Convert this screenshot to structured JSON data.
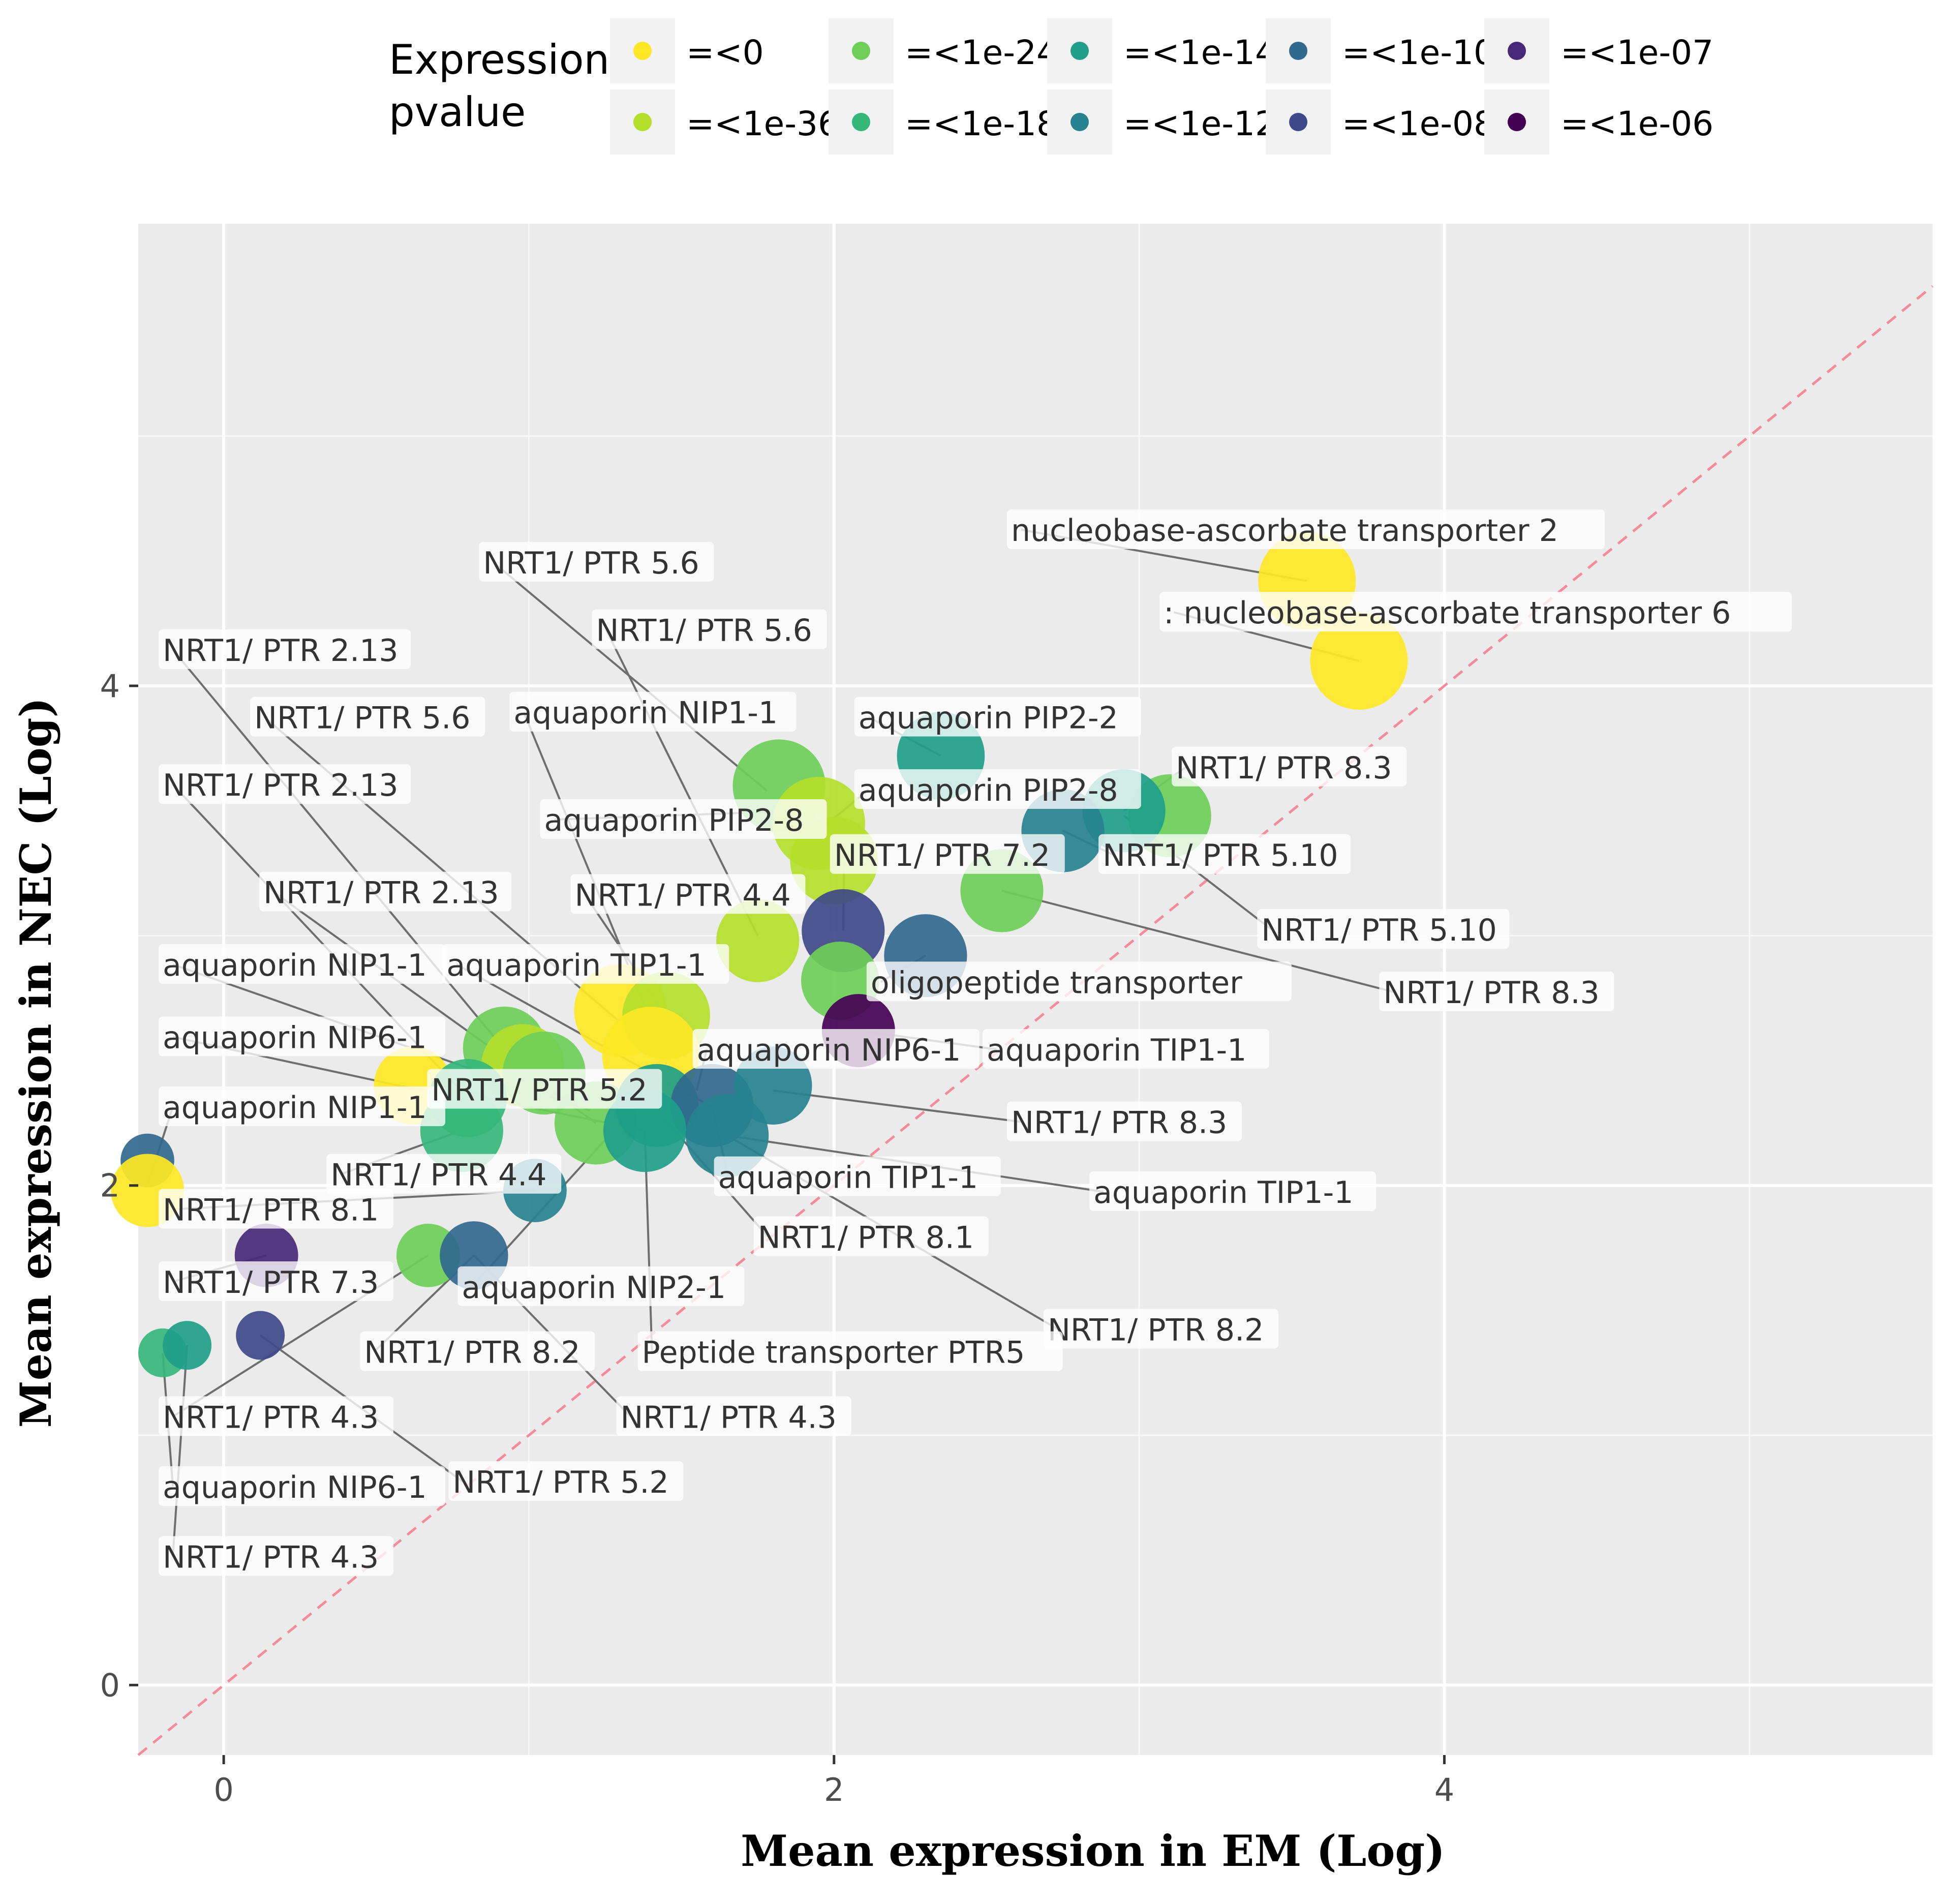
{
  "chart_data": {
    "type": "scatter",
    "xlabel": "Mean expression in EM (Log)",
    "ylabel": "Mean expression in  NEC (Log)",
    "xlim": [
      -0.28,
      5.6
    ],
    "ylim": [
      -0.28,
      5.85
    ],
    "x_ticks": [
      0,
      2,
      4
    ],
    "y_ticks": [
      0,
      2,
      4
    ],
    "grid": true,
    "diagonal_reference": "y = x",
    "legend": {
      "title_line1": "Expression",
      "title_line2": "pvalue",
      "position": "top",
      "entries": [
        {
          "label": "=<0",
          "color": "#FDE725"
        },
        {
          "label": "=<1e-36",
          "color": "#B5DE2B"
        },
        {
          "label": "=<1e-24",
          "color": "#6ECE58"
        },
        {
          "label": "=<1e-18",
          "color": "#35B779"
        },
        {
          "label": "=<1e-14",
          "color": "#1F9E89"
        },
        {
          "label": "=<1e-12",
          "color": "#26828E"
        },
        {
          "label": "=<1e-10",
          "color": "#31688E"
        },
        {
          "label": "=<1e-08",
          "color": "#3E4989"
        },
        {
          "label": "=<1e-07",
          "color": "#482878"
        },
        {
          "label": "=<1e-06",
          "color": "#440154"
        }
      ]
    },
    "points": [
      {
        "x": 3.55,
        "y": 4.42,
        "p": 0,
        "s": 1.0
      },
      {
        "x": 3.72,
        "y": 4.1,
        "p": 0,
        "s": 1.0
      },
      {
        "x": 2.35,
        "y": 3.72,
        "p": 4,
        "s": 0.9
      },
      {
        "x": 1.82,
        "y": 3.6,
        "p": 2,
        "s": 0.95
      },
      {
        "x": 1.95,
        "y": 3.45,
        "p": 1,
        "s": 0.95
      },
      {
        "x": 2.0,
        "y": 3.3,
        "p": 1,
        "s": 0.9
      },
      {
        "x": 3.1,
        "y": 3.48,
        "p": 2,
        "s": 0.85
      },
      {
        "x": 2.95,
        "y": 3.5,
        "p": 4,
        "s": 0.85
      },
      {
        "x": 2.75,
        "y": 3.42,
        "p": 5,
        "s": 0.85
      },
      {
        "x": 2.55,
        "y": 3.18,
        "p": 2,
        "s": 0.85
      },
      {
        "x": 2.03,
        "y": 3.02,
        "p": 7,
        "s": 0.85
      },
      {
        "x": 2.3,
        "y": 2.92,
        "p": 6,
        "s": 0.85
      },
      {
        "x": 1.75,
        "y": 2.98,
        "p": 1,
        "s": 0.85
      },
      {
        "x": 2.02,
        "y": 2.82,
        "p": 2,
        "s": 0.8
      },
      {
        "x": 2.08,
        "y": 2.62,
        "p": 9,
        "s": 0.75
      },
      {
        "x": 1.3,
        "y": 2.7,
        "p": 0,
        "s": 0.95
      },
      {
        "x": 1.45,
        "y": 2.68,
        "p": 1,
        "s": 0.9
      },
      {
        "x": 1.4,
        "y": 2.52,
        "p": 0,
        "s": 1.0
      },
      {
        "x": 0.92,
        "y": 2.55,
        "p": 2,
        "s": 0.85
      },
      {
        "x": 0.98,
        "y": 2.48,
        "p": 1,
        "s": 0.85
      },
      {
        "x": 1.05,
        "y": 2.45,
        "p": 2,
        "s": 0.85
      },
      {
        "x": 0.62,
        "y": 2.4,
        "p": 0,
        "s": 0.8
      },
      {
        "x": 0.8,
        "y": 2.35,
        "p": 3,
        "s": 0.8
      },
      {
        "x": 0.78,
        "y": 2.22,
        "p": 3,
        "s": 0.85
      },
      {
        "x": 1.22,
        "y": 2.25,
        "p": 2,
        "s": 0.85
      },
      {
        "x": 1.42,
        "y": 2.32,
        "p": 4,
        "s": 0.85
      },
      {
        "x": 1.6,
        "y": 2.32,
        "p": 6,
        "s": 0.85
      },
      {
        "x": 1.38,
        "y": 2.22,
        "p": 4,
        "s": 0.85
      },
      {
        "x": 1.65,
        "y": 2.2,
        "p": 5,
        "s": 0.85
      },
      {
        "x": 1.8,
        "y": 2.4,
        "p": 5,
        "s": 0.8
      },
      {
        "x": 1.02,
        "y": 1.98,
        "p": 5,
        "s": 0.65
      },
      {
        "x": -0.25,
        "y": 2.1,
        "p": 6,
        "s": 0.55
      },
      {
        "x": -0.25,
        "y": 1.98,
        "p": 0,
        "s": 0.75
      },
      {
        "x": 0.14,
        "y": 1.72,
        "p": 8,
        "s": 0.65
      },
      {
        "x": 0.67,
        "y": 1.72,
        "p": 2,
        "s": 0.65
      },
      {
        "x": 0.82,
        "y": 1.72,
        "p": 6,
        "s": 0.7
      },
      {
        "x": 0.12,
        "y": 1.4,
        "p": 7,
        "s": 0.5
      },
      {
        "x": -0.2,
        "y": 1.33,
        "p": 3,
        "s": 0.5
      },
      {
        "x": -0.12,
        "y": 1.36,
        "p": 4,
        "s": 0.5
      }
    ],
    "labels": [
      {
        "text": "nucleobase-ascorbate transporter 2",
        "lx": 2.58,
        "ly": 4.58,
        "px": 3.55,
        "py": 4.42
      },
      {
        "text": ": nucleobase-ascorbate transporter 6",
        "lx": 3.08,
        "ly": 4.25,
        "px": 3.72,
        "py": 4.1
      },
      {
        "text": "NRT1/ PTR 5.6",
        "lx": 0.85,
        "ly": 4.45,
        "px": 1.78,
        "py": 3.58
      },
      {
        "text": "NRT1/ PTR 5.6",
        "lx": 1.22,
        "ly": 4.18,
        "px": 1.75,
        "py": 3.0
      },
      {
        "text": "NRT1/ PTR 2.13",
        "lx": -0.2,
        "ly": 4.1,
        "px": 0.95,
        "py": 2.5
      },
      {
        "text": "NRT1/ PTR 5.6",
        "lx": 0.1,
        "ly": 3.83,
        "px": 1.35,
        "py": 2.6
      },
      {
        "text": "aquaporin NIP1-1",
        "lx": 0.95,
        "ly": 3.85,
        "px": 1.42,
        "py": 2.6
      },
      {
        "text": "aquaporin PIP2-2",
        "lx": 2.08,
        "ly": 3.83,
        "px": 2.35,
        "py": 3.72
      },
      {
        "text": "NRT1/ PTR 2.13",
        "lx": -0.2,
        "ly": 3.56,
        "px": 0.8,
        "py": 2.35
      },
      {
        "text": "aquaporin PIP2-8",
        "lx": 2.08,
        "ly": 3.54,
        "px": 1.98,
        "py": 3.45
      },
      {
        "text": "aquaporin PIP2-8",
        "lx": 1.05,
        "ly": 3.42,
        "px": 1.9,
        "py": 3.5
      },
      {
        "text": "NRT1/ PTR 8.3",
        "lx": 3.12,
        "ly": 3.63,
        "px": 2.95,
        "py": 3.5
      },
      {
        "text": "NRT1/ PTR 7.2",
        "lx": 2.0,
        "ly": 3.28,
        "px": 2.03,
        "py": 3.02
      },
      {
        "text": "NRT1/ PTR 5.10",
        "lx": 2.88,
        "ly": 3.28,
        "px": 2.75,
        "py": 3.42
      },
      {
        "text": "NRT1/ PTR 2.13",
        "lx": 0.13,
        "ly": 3.13,
        "px": 1.22,
        "py": 2.25
      },
      {
        "text": "NRT1/ PTR 4.4",
        "lx": 1.15,
        "ly": 3.12,
        "px": 1.45,
        "py": 2.68
      },
      {
        "text": "NRT1/ PTR 5.10",
        "lx": 3.4,
        "ly": 2.98,
        "px": 2.95,
        "py": 3.48
      },
      {
        "text": "aquaporin NIP1-1",
        "lx": -0.2,
        "ly": 2.84,
        "px": 1.2,
        "py": 2.3
      },
      {
        "text": "aquaporin TIP1-1",
        "lx": 0.73,
        "ly": 2.84,
        "px": 1.62,
        "py": 2.3
      },
      {
        "text": "oligopeptide transporter",
        "lx": 2.12,
        "ly": 2.77,
        "px": 2.3,
        "py": 2.92
      },
      {
        "text": "NRT1/ PTR 8.3",
        "lx": 3.8,
        "ly": 2.73,
        "px": 2.55,
        "py": 3.18
      },
      {
        "text": "aquaporin NIP6-1",
        "lx": -0.2,
        "ly": 2.55,
        "px": 0.65,
        "py": 2.38
      },
      {
        "text": "aquaporin TIP1-1",
        "lx": 2.5,
        "ly": 2.5,
        "px": 2.08,
        "py": 2.62
      },
      {
        "text": "aquaporin NIP6-1",
        "lx": 1.55,
        "ly": 2.5,
        "px": 1.55,
        "py": 2.38
      },
      {
        "text": "aquaporin NIP1-1",
        "lx": -0.2,
        "ly": 2.27,
        "px": -0.25,
        "py": 2.0
      },
      {
        "text": "NRT1/ PTR 5.2",
        "lx": 0.68,
        "ly": 2.34,
        "px": 1.38,
        "py": 2.22
      },
      {
        "text": "NRT1/ PTR 8.3",
        "lx": 2.58,
        "ly": 2.21,
        "px": 1.8,
        "py": 2.38
      },
      {
        "text": "NRT1/ PTR 4.4",
        "lx": 0.35,
        "ly": 2.0,
        "px": 0.78,
        "py": 2.22
      },
      {
        "text": "aquaporin TIP1-1",
        "lx": 1.62,
        "ly": 1.99,
        "px": 1.6,
        "py": 2.32
      },
      {
        "text": "aquaporin TIP1-1",
        "lx": 2.85,
        "ly": 1.93,
        "px": 1.65,
        "py": 2.2
      },
      {
        "text": "NRT1/ PTR 8.1",
        "lx": -0.2,
        "ly": 1.86,
        "px": 1.02,
        "py": 1.98
      },
      {
        "text": "NRT1/ PTR 8.1",
        "lx": 1.75,
        "ly": 1.75,
        "px": 1.42,
        "py": 2.3
      },
      {
        "text": "NRT1/ PTR 7.3",
        "lx": -0.2,
        "ly": 1.57,
        "px": 0.14,
        "py": 1.72
      },
      {
        "text": "aquaporin NIP2-1",
        "lx": 0.78,
        "ly": 1.55,
        "px": 1.3,
        "py": 2.25
      },
      {
        "text": "NRT1/ PTR 8.2",
        "lx": 2.7,
        "ly": 1.38,
        "px": 1.65,
        "py": 2.2
      },
      {
        "text": "NRT1/ PTR 8.2",
        "lx": 0.46,
        "ly": 1.29,
        "px": 0.82,
        "py": 1.72
      },
      {
        "text": "Peptide transporter PTR5",
        "lx": 1.37,
        "ly": 1.29,
        "px": 1.38,
        "py": 2.22
      },
      {
        "text": "NRT1/ PTR 4.3",
        "lx": -0.2,
        "ly": 1.03,
        "px": 0.67,
        "py": 1.72
      },
      {
        "text": "NRT1/ PTR 4.3",
        "lx": 1.3,
        "ly": 1.03,
        "px": 0.82,
        "py": 1.72
      },
      {
        "text": "aquaporin NIP6-1",
        "lx": -0.2,
        "ly": 0.75,
        "px": -0.2,
        "py": 1.33
      },
      {
        "text": "NRT1/ PTR 5.2",
        "lx": 0.75,
        "ly": 0.77,
        "px": 0.12,
        "py": 1.4
      },
      {
        "text": "NRT1/ PTR 4.3",
        "lx": -0.2,
        "ly": 0.47,
        "px": -0.12,
        "py": 1.36
      }
    ]
  }
}
